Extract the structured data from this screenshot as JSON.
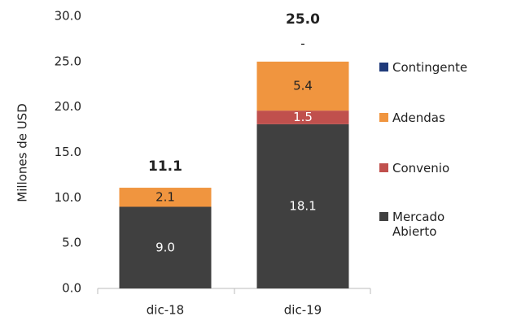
{
  "chart_data": {
    "type": "stacked_bar",
    "y_label": "Millones de USD",
    "categories": [
      "dic-18",
      "dic-19"
    ],
    "series": [
      {
        "name": "Mercado Abierto",
        "color": "#404040",
        "values": [
          9,
          18.1
        ],
        "value_labels": [
          "9.0",
          "18.1"
        ]
      },
      {
        "name": "Convenio",
        "color": "#c0504d",
        "values": [
          null,
          1.5
        ],
        "value_labels": [
          null,
          "1.5"
        ]
      },
      {
        "name": "Adendas",
        "color": "#f0953f",
        "values": [
          2.1,
          5.4
        ],
        "value_labels": [
          "2.1",
          "5.4"
        ]
      },
      {
        "name": "Contingente",
        "color": "#1f3a7a",
        "values": [
          null,
          0
        ],
        "value_labels": [
          null,
          "-"
        ]
      }
    ],
    "totals": [
      11.1,
      25
    ],
    "total_labels": [
      "11.1",
      "25.0"
    ],
    "ylim": [
      0,
      30
    ],
    "yticks": [
      {
        "value": 0,
        "label": "0.0"
      },
      {
        "value": 5,
        "label": "5.0"
      },
      {
        "value": 10,
        "label": "10.0"
      },
      {
        "value": 15,
        "label": "15.0"
      },
      {
        "value": 20,
        "label": "20.0"
      },
      {
        "value": 25,
        "label": "25.0"
      },
      {
        "value": 30,
        "label": "30.0"
      }
    ],
    "grid": false,
    "legend": "right"
  }
}
